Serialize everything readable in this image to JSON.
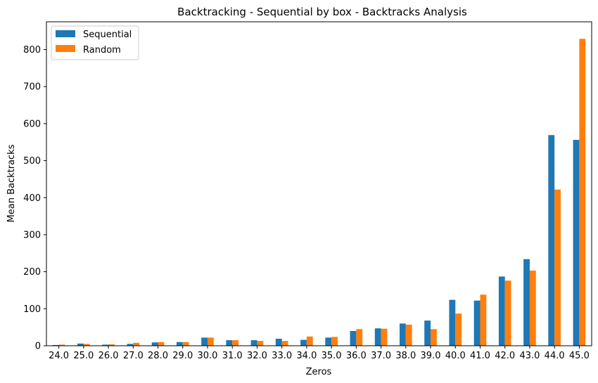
{
  "chart_data": {
    "type": "bar",
    "title": "Backtracking - Sequential by box - Backtracks Analysis",
    "xlabel": "Zeros",
    "ylabel": "Mean Backtracks",
    "ylim": [
      0,
      875
    ],
    "yticks": [
      0,
      100,
      200,
      300,
      400,
      500,
      600,
      700,
      800
    ],
    "categories": [
      "24.0",
      "25.0",
      "26.0",
      "27.0",
      "28.0",
      "29.0",
      "30.0",
      "31.0",
      "32.0",
      "33.0",
      "34.0",
      "35.0",
      "36.0",
      "37.0",
      "38.0",
      "39.0",
      "40.0",
      "41.0",
      "42.0",
      "43.0",
      "44.0",
      "45.0"
    ],
    "series": [
      {
        "name": "Sequential",
        "color": "#1f77b4",
        "values": [
          2,
          6,
          3,
          5,
          9,
          10,
          22,
          15,
          15,
          19,
          16,
          22,
          40,
          47,
          60,
          68,
          124,
          122,
          187,
          234,
          569,
          556
        ]
      },
      {
        "name": "Random",
        "color": "#ff7f0e",
        "values": [
          3,
          5,
          4,
          8,
          10,
          10,
          22,
          15,
          13,
          13,
          25,
          24,
          45,
          46,
          57,
          45,
          87,
          138,
          176,
          203,
          422,
          829
        ]
      }
    ],
    "legend": "top-left",
    "grid": false
  }
}
